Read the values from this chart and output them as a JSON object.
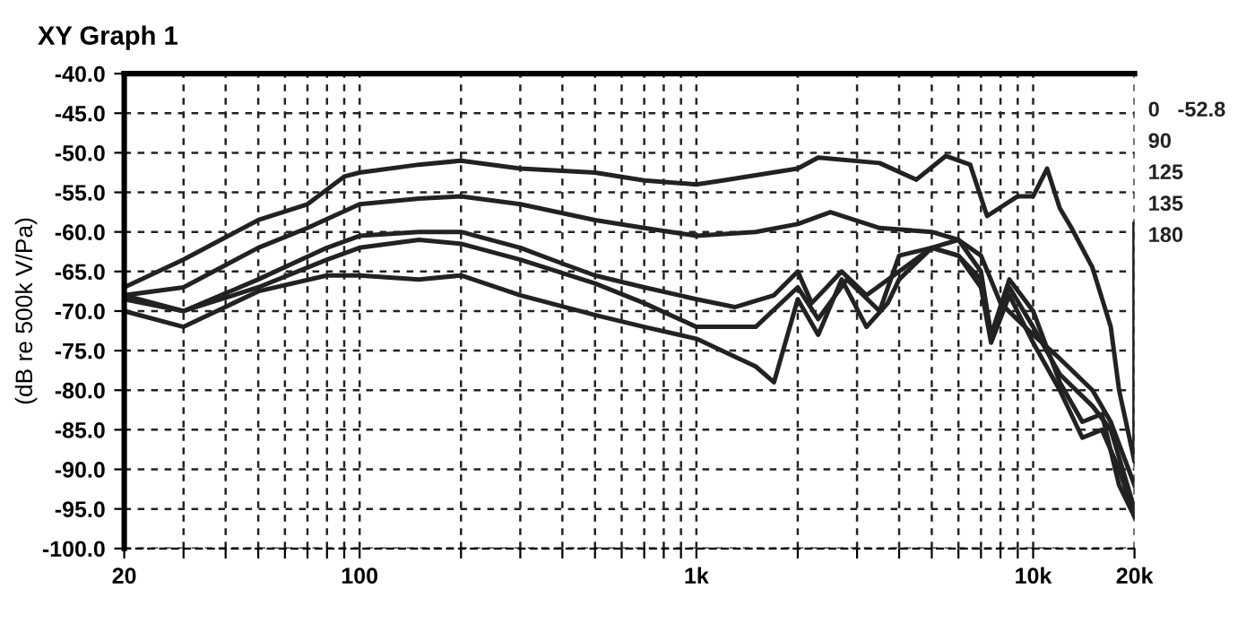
{
  "chart_data": {
    "type": "line",
    "title": "XY Graph 1",
    "ylabel": "(dB re 500k V/Pa)",
    "log": "x",
    "grid": true,
    "legend": "right",
    "line_style": "solid",
    "marker": "none",
    "xlim": [
      20,
      20000
    ],
    "ylim": [
      -100,
      -40
    ],
    "xticks": [
      {
        "value": 20,
        "label": "20"
      },
      {
        "value": 30,
        "label": null
      },
      {
        "value": 40,
        "label": null
      },
      {
        "value": 50,
        "label": null
      },
      {
        "value": 60,
        "label": null
      },
      {
        "value": 70,
        "label": null
      },
      {
        "value": 80,
        "label": null
      },
      {
        "value": 90,
        "label": null
      },
      {
        "value": 100,
        "label": "100"
      },
      {
        "value": 200,
        "label": null
      },
      {
        "value": 300,
        "label": null
      },
      {
        "value": 400,
        "label": null
      },
      {
        "value": 500,
        "label": null
      },
      {
        "value": 600,
        "label": null
      },
      {
        "value": 700,
        "label": null
      },
      {
        "value": 800,
        "label": null
      },
      {
        "value": 900,
        "label": null
      },
      {
        "value": 1000,
        "label": "1k"
      },
      {
        "value": 2000,
        "label": null
      },
      {
        "value": 3000,
        "label": null
      },
      {
        "value": 4000,
        "label": null
      },
      {
        "value": 5000,
        "label": null
      },
      {
        "value": 6000,
        "label": null
      },
      {
        "value": 7000,
        "label": null
      },
      {
        "value": 8000,
        "label": null
      },
      {
        "value": 9000,
        "label": null
      },
      {
        "value": 10000,
        "label": "10k"
      },
      {
        "value": 20000,
        "label": "20k"
      }
    ],
    "yticks": [
      {
        "value": -40,
        "label": "-40.0"
      },
      {
        "value": -45,
        "label": "-45.0"
      },
      {
        "value": -50,
        "label": "-50.0"
      },
      {
        "value": -55,
        "label": "-55.0"
      },
      {
        "value": -60,
        "label": "-60.0"
      },
      {
        "value": -65,
        "label": "-65.0"
      },
      {
        "value": -70,
        "label": "-70.0"
      },
      {
        "value": -75,
        "label": "-75.0"
      },
      {
        "value": -80,
        "label": "-80.0"
      },
      {
        "value": -85,
        "label": "-85.0"
      },
      {
        "value": -90,
        "label": "-90.0"
      },
      {
        "value": -95,
        "label": "-95.0"
      },
      {
        "value": -100,
        "label": "-100.0"
      }
    ],
    "series": [
      {
        "name": "0   -52.8",
        "color": "#222222",
        "x": [
          20,
          30,
          50,
          70,
          90,
          100,
          150,
          200,
          300,
          500,
          700,
          1000,
          1200,
          2000,
          2300,
          3500,
          4500,
          5500,
          6500,
          7300,
          9000,
          10000,
          11000,
          12000,
          13000,
          15000,
          17000,
          18000,
          20000,
          20000
        ],
        "values": [
          -67,
          -63.5,
          -58.5,
          -56.5,
          -53,
          -52.5,
          -51.5,
          -51,
          -52,
          -52.5,
          -53.5,
          -54,
          -53.5,
          -52,
          -50.6,
          -51.3,
          -53.4,
          -50.4,
          -51.5,
          -58,
          -55.5,
          -55.5,
          -52,
          -57,
          -59.5,
          -64.5,
          -72,
          -80,
          -89,
          -59
        ]
      },
      {
        "name": "90",
        "color": "#222222",
        "x": [
          20,
          30,
          50,
          70,
          100,
          150,
          200,
          300,
          500,
          700,
          1000,
          1500,
          2000,
          2500,
          3500,
          5000,
          6000,
          7000,
          8000,
          10000,
          12000,
          15000,
          17000,
          20000
        ],
        "values": [
          -68,
          -67,
          -62,
          -59.5,
          -56.5,
          -55.8,
          -55.5,
          -56.5,
          -58.5,
          -59.5,
          -60.5,
          -60,
          -59,
          -57.5,
          -59.5,
          -60,
          -61,
          -63,
          -69,
          -73,
          -76,
          -80,
          -84,
          -92
        ]
      },
      {
        "name": "125",
        "color": "#222222",
        "x": [
          20,
          30,
          50,
          80,
          100,
          150,
          200,
          300,
          400,
          500,
          700,
          1000,
          1300,
          1700,
          2000,
          2200,
          2700,
          3200,
          4000,
          5000,
          6000,
          7000,
          7500,
          8500,
          10000,
          12000,
          15000,
          17000,
          20000
        ],
        "values": [
          -68.5,
          -70,
          -66,
          -62,
          -60.5,
          -60,
          -60,
          -62,
          -64,
          -65.5,
          -67,
          -68.5,
          -69.5,
          -68,
          -65,
          -69,
          -65,
          -68,
          -65,
          -62,
          -61,
          -65,
          -73,
          -67,
          -72,
          -78,
          -82,
          -85,
          -95
        ]
      },
      {
        "name": "135",
        "color": "#222222",
        "x": [
          20,
          30,
          50,
          80,
          100,
          150,
          200,
          300,
          500,
          700,
          1000,
          1500,
          2000,
          2300,
          2800,
          3500,
          4000,
          5000,
          6000,
          7000,
          7500,
          8500,
          10000,
          12000,
          14000,
          16000,
          18000,
          20000
        ],
        "values": [
          -68,
          -70,
          -67,
          -63.5,
          -62,
          -61,
          -61.5,
          -63.5,
          -66.5,
          -69,
          -72,
          -72,
          -67,
          -71,
          -66,
          -70,
          -63,
          -62,
          -63,
          -67,
          -74,
          -68,
          -74,
          -80,
          -86,
          -85,
          -90,
          -96
        ]
      },
      {
        "name": "180",
        "color": "#222222",
        "x": [
          20,
          30,
          50,
          80,
          100,
          150,
          200,
          300,
          500,
          700,
          1000,
          1500,
          1700,
          2000,
          2300,
          2700,
          3200,
          3700,
          4000,
          5000,
          6000,
          7000,
          7500,
          8500,
          10000,
          12000,
          14000,
          16000,
          18000,
          20000
        ],
        "values": [
          -70,
          -72,
          -67.5,
          -65.5,
          -65.5,
          -66,
          -65.5,
          -68,
          -70.5,
          -72,
          -73.5,
          -77,
          -79,
          -68.5,
          -73,
          -66,
          -72,
          -69,
          -66,
          -62,
          -63,
          -66,
          -73,
          -66,
          -70,
          -79,
          -84,
          -83,
          -92,
          -96
        ]
      }
    ]
  }
}
